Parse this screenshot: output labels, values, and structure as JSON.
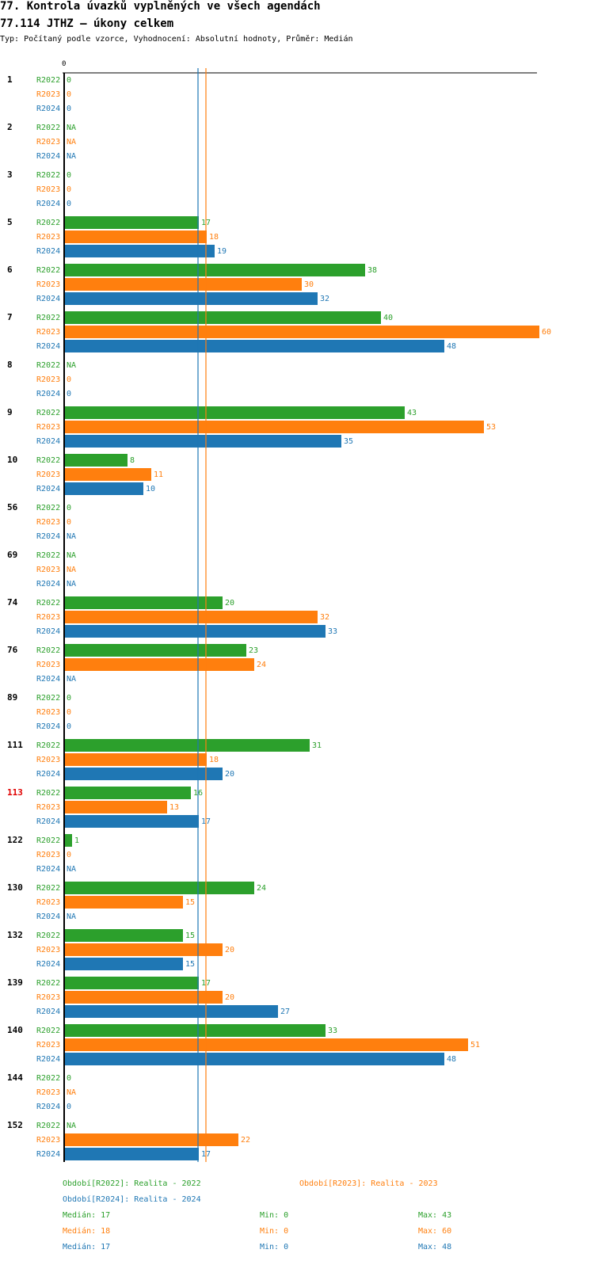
{
  "title": "77. Kontrola úvazků vyplněných ve všech agendách",
  "subtitle": "77.114 JTHZ – úkony celkem",
  "type_line": "Typ: Počítaný podle vzorce, Vyhodnocení: Absolutní hodnoty, Průměr: Medián",
  "colors": {
    "R2022": "#2ca02c",
    "R2023": "#ff7f0e",
    "R2024": "#1f77b4",
    "highlight": "#e00000"
  },
  "chart_data": {
    "type": "bar",
    "orientation": "horizontal",
    "axis_zero_label": "0",
    "xlim": [
      0,
      60
    ],
    "series_names": [
      "R2022",
      "R2023",
      "R2024"
    ],
    "categories": [
      {
        "label": "1",
        "values": [
          0,
          0,
          0
        ]
      },
      {
        "label": "2",
        "values": [
          null,
          null,
          null
        ]
      },
      {
        "label": "3",
        "values": [
          0,
          0,
          0
        ]
      },
      {
        "label": "5",
        "values": [
          17,
          18,
          19
        ]
      },
      {
        "label": "6",
        "values": [
          38,
          30,
          32
        ]
      },
      {
        "label": "7",
        "values": [
          40,
          60,
          48
        ]
      },
      {
        "label": "8",
        "values": [
          null,
          0,
          0
        ]
      },
      {
        "label": "9",
        "values": [
          43,
          53,
          35
        ]
      },
      {
        "label": "10",
        "values": [
          8,
          11,
          10
        ]
      },
      {
        "label": "56",
        "values": [
          0,
          0,
          null
        ]
      },
      {
        "label": "69",
        "values": [
          null,
          null,
          null
        ]
      },
      {
        "label": "74",
        "values": [
          20,
          32,
          33
        ]
      },
      {
        "label": "76",
        "values": [
          23,
          24,
          null
        ]
      },
      {
        "label": "89",
        "values": [
          0,
          0,
          0
        ]
      },
      {
        "label": "111",
        "values": [
          31,
          18,
          20
        ]
      },
      {
        "label": "113",
        "values": [
          16,
          13,
          17
        ],
        "highlight": true
      },
      {
        "label": "122",
        "values": [
          1,
          0,
          null
        ]
      },
      {
        "label": "130",
        "values": [
          24,
          15,
          null
        ]
      },
      {
        "label": "132",
        "values": [
          15,
          20,
          15
        ]
      },
      {
        "label": "139",
        "values": [
          17,
          20,
          27
        ]
      },
      {
        "label": "140",
        "values": [
          33,
          51,
          48
        ]
      },
      {
        "label": "144",
        "values": [
          0,
          null,
          0
        ]
      },
      {
        "label": "152",
        "values": [
          null,
          22,
          17
        ]
      }
    ],
    "na_label": "NA",
    "median_lines": [
      {
        "series": "R2024",
        "value": 17
      },
      {
        "series": "R2023",
        "value": 18
      }
    ],
    "legend": [
      {
        "series": "R2022",
        "text": "Období[R2022]: Realita - 2022"
      },
      {
        "series": "R2023",
        "text": "Období[R2023]: Realita - 2023"
      },
      {
        "series": "R2024",
        "text": "Období[R2024]: Realita - 2024"
      }
    ],
    "stats": [
      {
        "series": "R2022",
        "median": "Medián: 17",
        "min": "Min: 0",
        "max": "Max: 43"
      },
      {
        "series": "R2023",
        "median": "Medián: 18",
        "min": "Min: 0",
        "max": "Max: 60"
      },
      {
        "series": "R2024",
        "median": "Medián: 17",
        "min": "Min: 0",
        "max": "Max: 48"
      }
    ]
  }
}
